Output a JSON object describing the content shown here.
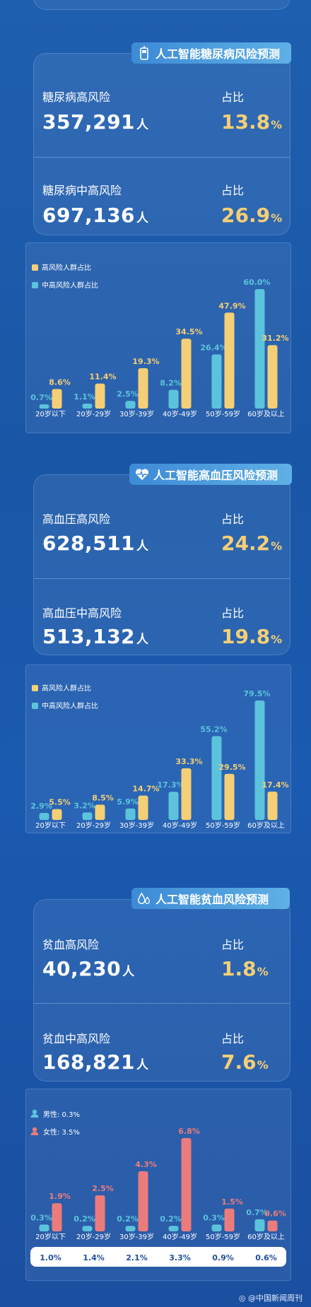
{
  "colors": {
    "high": "#f5cf75",
    "midhigh": "#5cc3dc",
    "male": "#5cc3dc",
    "female": "#ec7c7c",
    "accent_text": "#f5cf75"
  },
  "sections": [
    {
      "title": "人工智能糖尿病风险预测",
      "icon": "glucose-meter-icon",
      "stats": [
        {
          "label": "糖尿病高风险",
          "value": "357,291",
          "unit": "人",
          "pct_label": "占比",
          "pct": "13.8",
          "pct_unit": "%"
        },
        {
          "label": "糖尿病中高风险",
          "value": "697,136",
          "unit": "人",
          "pct_label": "占比",
          "pct": "26.9",
          "pct_unit": "%"
        }
      ]
    },
    {
      "title": "人工智能高血压风险预测",
      "icon": "heart-pulse-icon",
      "stats": [
        {
          "label": "高血压高风险",
          "value": "628,511",
          "unit": "人",
          "pct_label": "占比",
          "pct": "24.2",
          "pct_unit": "%"
        },
        {
          "label": "高血压中高风险",
          "value": "513,132",
          "unit": "人",
          "pct_label": "占比",
          "pct": "19.8",
          "pct_unit": "%"
        }
      ]
    },
    {
      "title": "人工智能贫血风险预测",
      "icon": "droplets-icon",
      "stats": [
        {
          "label": "贫血高风险",
          "value": "40,230",
          "unit": "人",
          "pct_label": "占比",
          "pct": "1.8",
          "pct_unit": "%"
        },
        {
          "label": "贫血中高风险",
          "value": "168,821",
          "unit": "人",
          "pct_label": "占比",
          "pct": "7.6",
          "pct_unit": "%"
        }
      ]
    }
  ],
  "chart_data": [
    {
      "type": "bar",
      "categories": [
        "20岁以下",
        "20岁-29岁",
        "30岁-39岁",
        "40岁-49岁",
        "50岁-59岁",
        "60岁及以上"
      ],
      "series": [
        {
          "name": "高风险人群占比",
          "color": "#f5cf75",
          "values": [
            8.6,
            11.4,
            19.3,
            34.5,
            47.9,
            31.2
          ],
          "labels": [
            "8.6%",
            "11.4%",
            "19.3%",
            "34.5%",
            "47.9%",
            "31.2%"
          ]
        },
        {
          "name": "中高风险人群占比",
          "color": "#5cc3dc",
          "values": [
            0.7,
            1.1,
            2.5,
            8.2,
            26.4,
            60.0
          ],
          "labels": [
            "0.7%",
            "1.1%",
            "2.5%",
            "8.2%",
            "26.4%",
            "60.0%"
          ]
        }
      ],
      "ylim": [
        0,
        60
      ],
      "legend": "top-left"
    },
    {
      "type": "bar",
      "categories": [
        "20岁以下",
        "20岁-29岁",
        "30岁-39岁",
        "40岁-49岁",
        "50岁-59岁",
        "60岁及以上"
      ],
      "series": [
        {
          "name": "高风险人群占比",
          "color": "#f5cf75",
          "values": [
            5.5,
            8.5,
            14.7,
            33.3,
            29.5,
            17.4
          ],
          "labels": [
            "5.5%",
            "8.5%",
            "14.7%",
            "33.3%",
            "29.5%",
            "17.4%"
          ]
        },
        {
          "name": "中高风险人群占比",
          "color": "#5cc3dc",
          "values": [
            2.9,
            3.2,
            5.9,
            17.3,
            55.2,
            79.5
          ],
          "labels": [
            "2.9%",
            "3.2%",
            "5.9%",
            "17.3%",
            "55.2%",
            "79.5%"
          ]
        }
      ],
      "ylim": [
        0,
        79.5
      ],
      "legend": "top-left"
    },
    {
      "type": "bar",
      "categories": [
        "20岁以下",
        "20岁-29岁",
        "30岁-39岁",
        "40岁-49岁",
        "50岁-59岁",
        "60岁及以上"
      ],
      "series": [
        {
          "name": "男性",
          "legend_label": "男性: 0.3%",
          "color": "#5cc3dc",
          "values": [
            0.3,
            0.2,
            0.2,
            0.2,
            0.3,
            0.7
          ],
          "labels": [
            "0.3%",
            "0.2%",
            "0.2%",
            "0.2%",
            "0.3%",
            "0.7%"
          ]
        },
        {
          "name": "女性",
          "legend_label": "女性: 3.5%",
          "color": "#ec7c7c",
          "values": [
            1.9,
            2.5,
            4.3,
            6.8,
            1.5,
            0.6
          ],
          "labels": [
            "1.9%",
            "2.5%",
            "4.3%",
            "6.8%",
            "1.5%",
            "0.6%"
          ]
        }
      ],
      "totals": [
        "1.0%",
        "1.4%",
        "2.1%",
        "3.3%",
        "0.9%",
        "0.6%"
      ],
      "ylim": [
        0,
        6.8
      ],
      "legend": "top-left"
    }
  ],
  "footer": {
    "text": "@中国新闻周刊"
  }
}
